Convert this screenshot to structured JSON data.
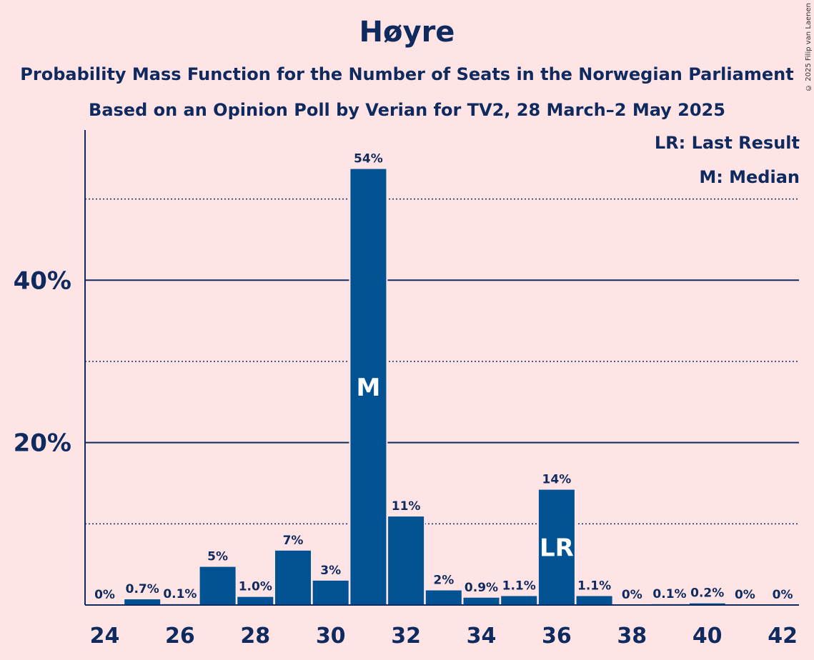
{
  "chart_data": {
    "type": "bar",
    "title": "Høyre",
    "subtitle_1": "Probability Mass Function for the Number of Seats in the Norwegian Parliament",
    "subtitle_2": "Based on an Opinion Poll by Verian for TV2, 28 March–2 May 2025",
    "legend": {
      "last_result": "LR: Last Result",
      "median": "M: Median",
      "placement": "top-right"
    },
    "copyright": "© 2025 Filip van Laenen",
    "categories": [
      24,
      25,
      26,
      27,
      28,
      29,
      30,
      31,
      32,
      33,
      34,
      35,
      36,
      37,
      38,
      39,
      40,
      41,
      42
    ],
    "values": [
      0,
      0.7,
      0.1,
      4.7,
      1.0,
      6.7,
      3.0,
      53.7,
      10.9,
      1.8,
      0.9,
      1.1,
      14.2,
      1.1,
      0,
      0.1,
      0.2,
      0,
      0
    ],
    "labels": [
      "0%",
      "0.7%",
      "0.1%",
      "5%",
      "1.0%",
      "7%",
      "3%",
      "54%",
      "11%",
      "2%",
      "0.9%",
      "1.1%",
      "14%",
      "1.1%",
      "0%",
      "0.1%",
      "0.2%",
      "0%",
      "0%"
    ],
    "median_seat": 31,
    "median_marker": "M",
    "last_result_seat": 36,
    "last_result_marker": "LR",
    "x_tick_labels": [
      "24",
      "26",
      "28",
      "30",
      "32",
      "34",
      "36",
      "38",
      "40",
      "42"
    ],
    "y_tick_labels": [
      {
        "value": 20,
        "label": "20%"
      },
      {
        "value": 40,
        "label": "40%"
      }
    ],
    "dotted_gridlines": [
      10,
      30,
      50
    ],
    "solid_gridlines": [
      20,
      40
    ],
    "ylim": [
      0,
      58.5
    ],
    "colors": {
      "bar": "#005293",
      "text": "#0E2A5E",
      "background": "#FFE4E6"
    }
  }
}
